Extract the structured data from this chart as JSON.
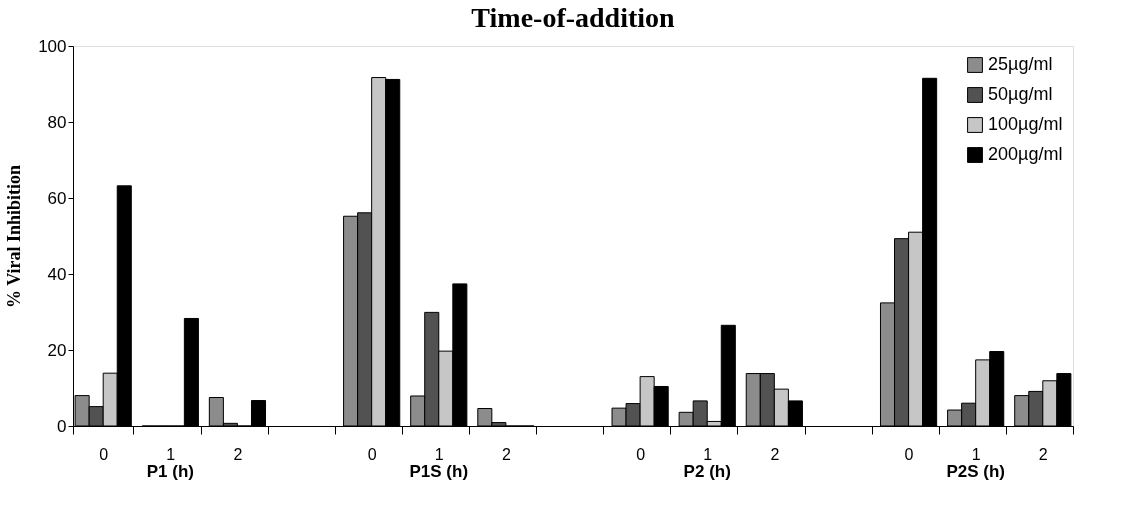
{
  "chart_data": {
    "type": "bar",
    "title": "Time-of-addition",
    "ylabel": "% Viral Inhibition",
    "categories": [
      "0",
      "1",
      "2",
      null,
      "0",
      "1",
      "2",
      null,
      "0",
      "1",
      "2",
      null,
      "0",
      "1",
      "2"
    ],
    "series": [
      {
        "name": "25µg/ml",
        "color": "#8c8c8c",
        "values": [
          8.0,
          0,
          7.5,
          null,
          55.2,
          7.9,
          4.6,
          null,
          4.7,
          3.6,
          13.8,
          null,
          32.4,
          4.2,
          8.0
        ]
      },
      {
        "name": "50µg/ml",
        "color": "#525252",
        "values": [
          5.1,
          0,
          0.7,
          null,
          56.1,
          29.9,
          0.9,
          null,
          5.9,
          6.6,
          13.8,
          null,
          49.3,
          6.0,
          9.1
        ]
      },
      {
        "name": "100µg/ml",
        "color": "#c6c6c6",
        "values": [
          13.9,
          0,
          0,
          null,
          91.7,
          19.7,
          0,
          null,
          13.0,
          1.2,
          9.7,
          null,
          51.0,
          17.4,
          11.9
        ]
      },
      {
        "name": "200µg/ml",
        "color": "#000000",
        "values": [
          63.2,
          28.3,
          6.7,
          null,
          91.2,
          37.4,
          0,
          null,
          10.4,
          26.5,
          6.6,
          null,
          91.5,
          19.6,
          13.8
        ]
      }
    ],
    "ylim": [
      0,
      100
    ],
    "yticks": [
      0,
      20,
      40,
      60,
      80,
      100
    ],
    "legend": "top right",
    "annotations": [
      "P1 (h)",
      "P1S (h)",
      "P2 (h)",
      "P2S (h)"
    ]
  }
}
